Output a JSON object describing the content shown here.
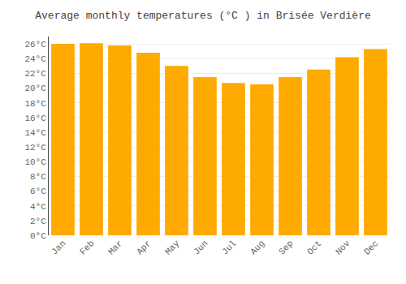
{
  "chart_data": {
    "type": "bar",
    "title": "Average monthly temperatures (°C ) in Brisée Verdière",
    "categories": [
      "Jan",
      "Feb",
      "Mar",
      "Apr",
      "May",
      "Jun",
      "Jul",
      "Aug",
      "Sep",
      "Oct",
      "Nov",
      "Dec"
    ],
    "values": [
      26.0,
      26.1,
      25.8,
      24.8,
      23.0,
      21.5,
      20.7,
      20.5,
      21.5,
      22.5,
      24.2,
      25.3
    ],
    "color": "#FFAA00",
    "ylim": [
      0,
      27
    ],
    "yticks": [
      {
        "value": 0,
        "label": "0°C"
      },
      {
        "value": 2,
        "label": "2°C"
      },
      {
        "value": 4,
        "label": "4°C"
      },
      {
        "value": 6,
        "label": "6°C"
      },
      {
        "value": 8,
        "label": "8°C"
      },
      {
        "value": 10,
        "label": "10°C"
      },
      {
        "value": 12,
        "label": "12°C"
      },
      {
        "value": 14,
        "label": "14°C"
      },
      {
        "value": 16,
        "label": "16°C"
      },
      {
        "value": 18,
        "label": "18°C"
      },
      {
        "value": 20,
        "label": "20°C"
      },
      {
        "value": 22,
        "label": "22°C"
      },
      {
        "value": 24,
        "label": "24°C"
      },
      {
        "value": 26,
        "label": "26°C"
      }
    ],
    "grid": true
  }
}
